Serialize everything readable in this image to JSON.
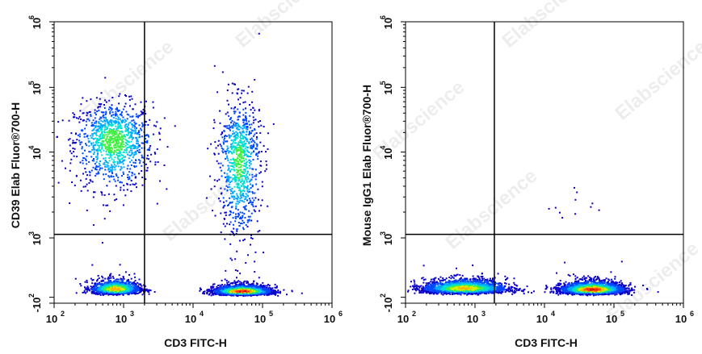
{
  "watermark": "Elabscience",
  "colors": {
    "density_scale": [
      "#0a00c8",
      "#0046ff",
      "#00a8ff",
      "#00e0d0",
      "#40f040",
      "#d8f000",
      "#ffb000",
      "#ff4000",
      "#d00000"
    ],
    "axis": "#000000",
    "gate": "#000000"
  },
  "chart_data": [
    {
      "type": "scatter",
      "subtype": "flow-cytometry-density-dot-plot",
      "xlabel": "CD3 FITC-H",
      "ylabel": "CD39 Elab Fluor®700-H",
      "x_scale": "log",
      "y_scale": "biexponential",
      "xlim": [
        100,
        1000000
      ],
      "ylim": [
        -100,
        1000000
      ],
      "x_ticks": [
        {
          "value": 100,
          "base": "10",
          "exp": "2"
        },
        {
          "value": 1000,
          "base": "10",
          "exp": "3"
        },
        {
          "value": 10000,
          "base": "10",
          "exp": "4"
        },
        {
          "value": 100000,
          "base": "10",
          "exp": "5"
        },
        {
          "value": 1000000,
          "base": "10",
          "exp": "6"
        }
      ],
      "y_ticks": [
        {
          "value": -100,
          "base": "-10",
          "exp": "2"
        },
        {
          "value": 1000,
          "base": "10",
          "exp": "3"
        },
        {
          "value": 10000,
          "base": "10",
          "exp": "4"
        },
        {
          "value": 100000,
          "base": "10",
          "exp": "5"
        },
        {
          "value": 1000000,
          "base": "10",
          "exp": "6"
        }
      ],
      "quadrant_gate": {
        "x": 2000,
        "y": 1100
      },
      "populations": [
        {
          "x_center": 700,
          "y_center": 15000,
          "spread_x": 0.28,
          "spread_y": 0.3,
          "count": 1100,
          "peak": 0.55
        },
        {
          "x_center": 750,
          "y_center": 150,
          "spread_x": 0.17,
          "spread_y": 0.16,
          "count": 1500,
          "peak": 0.8
        },
        {
          "x_center": 50000,
          "y_center": 110,
          "spread_x": 0.2,
          "spread_y": 0.15,
          "count": 2600,
          "peak": 1.0
        },
        {
          "x_center": 45000,
          "y_center": 8000,
          "spread_x": 0.15,
          "spread_y": 0.45,
          "count": 900,
          "peak": 0.5
        }
      ]
    },
    {
      "type": "scatter",
      "subtype": "flow-cytometry-density-dot-plot",
      "xlabel": "CD3 FITC-H",
      "ylabel": "Mouse IgG1 Elab Fluor®700-H",
      "x_scale": "log",
      "y_scale": "biexponential",
      "xlim": [
        100,
        1000000
      ],
      "ylim": [
        -100,
        1000000
      ],
      "x_ticks": [
        {
          "value": 100,
          "base": "10",
          "exp": "2"
        },
        {
          "value": 1000,
          "base": "10",
          "exp": "3"
        },
        {
          "value": 10000,
          "base": "10",
          "exp": "4"
        },
        {
          "value": 100000,
          "base": "10",
          "exp": "5"
        },
        {
          "value": 1000000,
          "base": "10",
          "exp": "6"
        }
      ],
      "y_ticks": [
        {
          "value": -100,
          "base": "-10",
          "exp": "2"
        },
        {
          "value": 1000,
          "base": "10",
          "exp": "3"
        },
        {
          "value": 10000,
          "base": "10",
          "exp": "4"
        },
        {
          "value": 100000,
          "base": "10",
          "exp": "5"
        },
        {
          "value": 1000000,
          "base": "10",
          "exp": "6"
        }
      ],
      "quadrant_gate": {
        "x": 1900,
        "y": 1100
      },
      "populations": [
        {
          "x_center": 700,
          "y_center": 160,
          "spread_x": 0.3,
          "spread_y": 0.15,
          "count": 2300,
          "peak": 0.75
        },
        {
          "x_center": 48000,
          "y_center": 140,
          "spread_x": 0.22,
          "spread_y": 0.15,
          "count": 2800,
          "peak": 1.0
        },
        {
          "x_center": 30000,
          "y_center": 1800,
          "spread_x": 0.4,
          "spread_y": 0.25,
          "count": 12,
          "peak": 0.0
        }
      ]
    }
  ]
}
